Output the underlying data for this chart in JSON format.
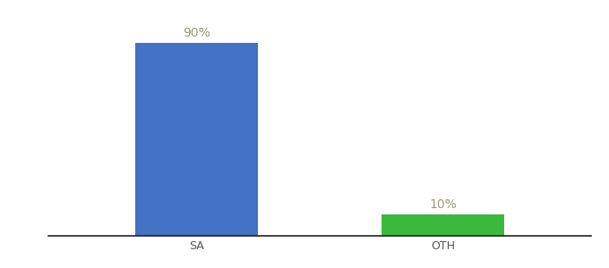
{
  "categories": [
    "SA",
    "OTH"
  ],
  "values": [
    90,
    10
  ],
  "bar_colors": [
    "#4472C4",
    "#3CB93C"
  ],
  "value_labels": [
    "90%",
    "10%"
  ],
  "ylim": [
    0,
    100
  ],
  "background_color": "#ffffff",
  "label_color": "#999977",
  "label_fontsize": 10,
  "tick_fontsize": 9,
  "bar_width": 0.5,
  "xlim": [
    -0.6,
    1.6
  ]
}
